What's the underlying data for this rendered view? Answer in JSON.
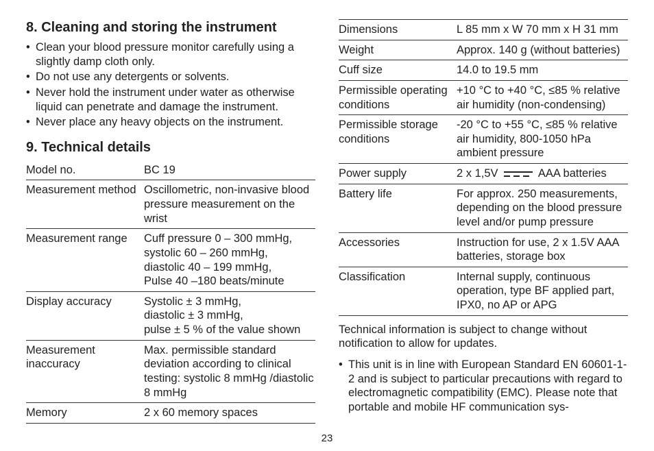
{
  "section8": {
    "heading": "8. Cleaning and storing the instrument",
    "bullets": [
      "Clean your blood pressure monitor carefully using a slightly damp cloth only.",
      "Do not use any detergents or solvents.",
      "Never hold the instrument under water as otherwise liquid can penetrate and damage the instrument.",
      "Never place any heavy objects on the instrument."
    ]
  },
  "section9": {
    "heading": "9. Technical details",
    "rows_left": [
      {
        "label": "Model no.",
        "value": "BC 19"
      },
      {
        "label": "Measurement method",
        "value": "Oscillometric, non-invasive blood pressure measurement on the wrist"
      },
      {
        "label": "Measurement range",
        "value": "Cuff pressure 0 – 300 mmHg,\nsystolic 60 – 260 mmHg,\ndiastolic 40 – 199 mmHg,\nPulse 40 –180 beats/minute"
      },
      {
        "label": "Display accuracy",
        "value": "Systolic ± 3 mmHg,\ndiastolic ± 3 mmHg,\npulse ± 5 % of the value shown"
      },
      {
        "label": "Measurement inaccuracy",
        "value": "Max. permissible standard deviation according to clinical testing: systolic 8 mmHg /diastolic 8 mmHg"
      },
      {
        "label": "Memory",
        "value": "2 x 60 memory spaces"
      }
    ],
    "rows_right": [
      {
        "label": "Dimensions",
        "value": "L 85 mm x W 70 mm x H 31 mm"
      },
      {
        "label": "Weight",
        "value": "Approx. 140 g (without batteries)"
      },
      {
        "label": "Cuff size",
        "value": "14.0 to 19.5 mm"
      },
      {
        "label": "Permissible operating conditions",
        "value": "+10 °C to +40 °C, ≤85 % relative air humidity (non-condensing)"
      },
      {
        "label": "Permissible storage conditions",
        "value": "-20 °C to +55 °C, ≤85 % relative air humidity, 800-1050 hPa ambient pressure"
      },
      {
        "label": "Power supply",
        "value_prefix": "2 x 1,5V",
        "value_suffix": "AAA batteries",
        "dc_symbol": true
      },
      {
        "label": "Battery life",
        "value": "For approx. 250 measurements, depending on the blood pressure level and/or pump pressure"
      },
      {
        "label": "Accessories",
        "value": "Instruction for use, 2 x 1.5V AAA batteries, storage box"
      },
      {
        "label": "Classification",
        "value": "Internal supply, continuous operation, type BF applied part, IPX0, no AP or APG"
      }
    ]
  },
  "notice": "Technical information is subject to change without notification to allow for updates.",
  "compliance_bullet": "This unit is in line with European Standard EN 60601-1-2 and is subject to particular precautions with regard to electromagnetic compatibility (EMC). Please note that portable and mobile HF communication sys-",
  "page_number": "23"
}
